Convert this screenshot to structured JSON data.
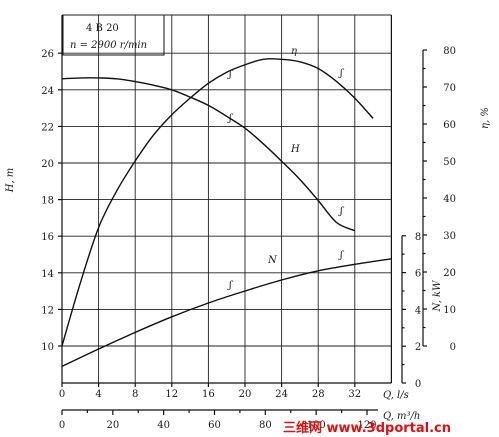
{
  "chart_data": {
    "type": "line",
    "legend_box": {
      "model": "4 B 20",
      "speed": "n = 2900   r/min"
    },
    "x_axis": {
      "label": "Q, l/s",
      "ticks": [
        0,
        4,
        8,
        12,
        16,
        20,
        24,
        28,
        32
      ],
      "range": [
        0,
        36
      ]
    },
    "x2_axis": {
      "label": "Q, m³/h",
      "ticks": [
        0,
        20,
        40,
        60,
        80,
        100,
        120
      ]
    },
    "y_left": {
      "label": "H, m",
      "ticks": [
        10,
        12,
        14,
        16,
        18,
        20,
        22,
        24,
        26
      ],
      "range": [
        10,
        26
      ]
    },
    "y_right_eta": {
      "label": "η, %",
      "ticks": [
        0,
        10,
        20,
        30,
        40,
        50,
        60,
        70,
        80
      ],
      "range": [
        0,
        80
      ]
    },
    "y_right_n": {
      "label": "N, kW",
      "ticks": [
        0,
        2,
        4,
        6,
        8
      ],
      "range": [
        0,
        8
      ]
    },
    "series": [
      {
        "name": "H",
        "axis": "left",
        "x": [
          0,
          2,
          4,
          6,
          8,
          10,
          12,
          14,
          16,
          18,
          20,
          22,
          24,
          26,
          28,
          30,
          32
        ],
        "y": [
          24.6,
          24.65,
          24.65,
          24.6,
          24.45,
          24.25,
          24.0,
          23.6,
          23.15,
          22.55,
          21.9,
          21.05,
          20.1,
          19.1,
          17.95,
          16.75,
          16.3
        ]
      },
      {
        "name": "η",
        "axis": "right_eta",
        "x": [
          0,
          2,
          4,
          6,
          8,
          10,
          12,
          14,
          16,
          18,
          20,
          22,
          24,
          26,
          28,
          30,
          32,
          34
        ],
        "y": [
          0,
          17,
          32,
          42,
          50,
          57,
          62.5,
          67,
          71,
          74,
          76,
          77.5,
          77.5,
          76.8,
          75,
          71.5,
          67,
          61.5
        ]
      },
      {
        "name": "N",
        "axis": "right_n",
        "x": [
          0,
          4,
          8,
          12,
          16,
          20,
          24,
          28,
          32,
          36
        ],
        "y": [
          0.9,
          1.85,
          2.75,
          3.6,
          4.35,
          5.0,
          5.6,
          6.1,
          6.45,
          6.75
        ]
      }
    ]
  },
  "watermark": "三维网 www.3dportal.cn"
}
